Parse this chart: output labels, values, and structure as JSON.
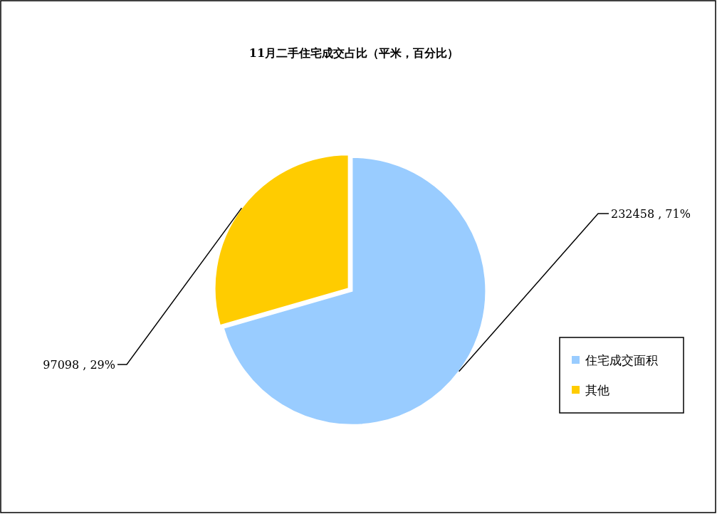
{
  "chart_data": {
    "type": "pie",
    "title": "11月二手住宅成交占比（平米，百分比）",
    "categories": [
      "住宅成交面积",
      "其他"
    ],
    "values": [
      232458,
      97098
    ],
    "colors": [
      "#99ccff",
      "#ffcc00"
    ],
    "value_labels": [
      "232458 , 71%",
      "97098 , 29%"
    ],
    "legend": "right"
  }
}
